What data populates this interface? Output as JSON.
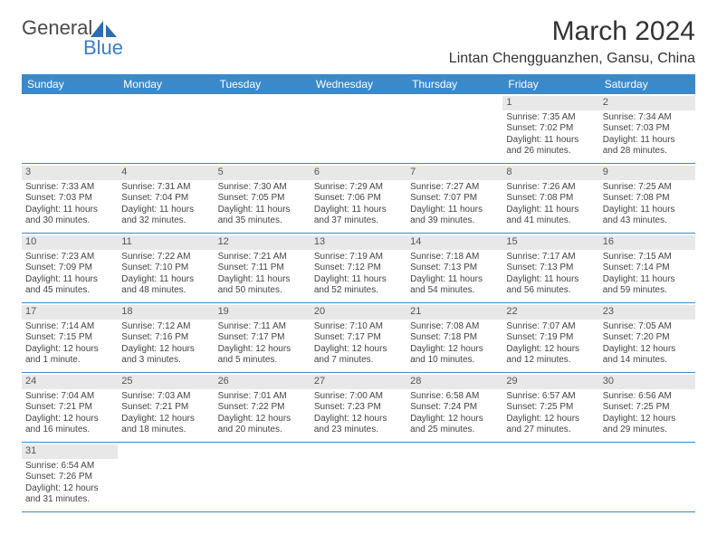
{
  "header": {
    "logo_text1": "General",
    "logo_text2": "Blue",
    "month_title": "March 2024",
    "location": "Lintan Chengguanzhen, Gansu, China"
  },
  "day_names": [
    "Sunday",
    "Monday",
    "Tuesday",
    "Wednesday",
    "Thursday",
    "Friday",
    "Saturday"
  ],
  "colors": {
    "header_bg": "#3b89c9",
    "header_fg": "#ffffff",
    "daynum_bg": "#e8e8e8",
    "accent": "#3b7fc4"
  },
  "weeks": [
    [
      null,
      null,
      null,
      null,
      null,
      {
        "n": "1",
        "sr": "Sunrise: 7:35 AM",
        "ss": "Sunset: 7:02 PM",
        "d1": "Daylight: 11 hours",
        "d2": "and 26 minutes."
      },
      {
        "n": "2",
        "sr": "Sunrise: 7:34 AM",
        "ss": "Sunset: 7:03 PM",
        "d1": "Daylight: 11 hours",
        "d2": "and 28 minutes."
      }
    ],
    [
      {
        "n": "3",
        "sr": "Sunrise: 7:33 AM",
        "ss": "Sunset: 7:03 PM",
        "d1": "Daylight: 11 hours",
        "d2": "and 30 minutes."
      },
      {
        "n": "4",
        "sr": "Sunrise: 7:31 AM",
        "ss": "Sunset: 7:04 PM",
        "d1": "Daylight: 11 hours",
        "d2": "and 32 minutes."
      },
      {
        "n": "5",
        "sr": "Sunrise: 7:30 AM",
        "ss": "Sunset: 7:05 PM",
        "d1": "Daylight: 11 hours",
        "d2": "and 35 minutes."
      },
      {
        "n": "6",
        "sr": "Sunrise: 7:29 AM",
        "ss": "Sunset: 7:06 PM",
        "d1": "Daylight: 11 hours",
        "d2": "and 37 minutes."
      },
      {
        "n": "7",
        "sr": "Sunrise: 7:27 AM",
        "ss": "Sunset: 7:07 PM",
        "d1": "Daylight: 11 hours",
        "d2": "and 39 minutes."
      },
      {
        "n": "8",
        "sr": "Sunrise: 7:26 AM",
        "ss": "Sunset: 7:08 PM",
        "d1": "Daylight: 11 hours",
        "d2": "and 41 minutes."
      },
      {
        "n": "9",
        "sr": "Sunrise: 7:25 AM",
        "ss": "Sunset: 7:08 PM",
        "d1": "Daylight: 11 hours",
        "d2": "and 43 minutes."
      }
    ],
    [
      {
        "n": "10",
        "sr": "Sunrise: 7:23 AM",
        "ss": "Sunset: 7:09 PM",
        "d1": "Daylight: 11 hours",
        "d2": "and 45 minutes."
      },
      {
        "n": "11",
        "sr": "Sunrise: 7:22 AM",
        "ss": "Sunset: 7:10 PM",
        "d1": "Daylight: 11 hours",
        "d2": "and 48 minutes."
      },
      {
        "n": "12",
        "sr": "Sunrise: 7:21 AM",
        "ss": "Sunset: 7:11 PM",
        "d1": "Daylight: 11 hours",
        "d2": "and 50 minutes."
      },
      {
        "n": "13",
        "sr": "Sunrise: 7:19 AM",
        "ss": "Sunset: 7:12 PM",
        "d1": "Daylight: 11 hours",
        "d2": "and 52 minutes."
      },
      {
        "n": "14",
        "sr": "Sunrise: 7:18 AM",
        "ss": "Sunset: 7:13 PM",
        "d1": "Daylight: 11 hours",
        "d2": "and 54 minutes."
      },
      {
        "n": "15",
        "sr": "Sunrise: 7:17 AM",
        "ss": "Sunset: 7:13 PM",
        "d1": "Daylight: 11 hours",
        "d2": "and 56 minutes."
      },
      {
        "n": "16",
        "sr": "Sunrise: 7:15 AM",
        "ss": "Sunset: 7:14 PM",
        "d1": "Daylight: 11 hours",
        "d2": "and 59 minutes."
      }
    ],
    [
      {
        "n": "17",
        "sr": "Sunrise: 7:14 AM",
        "ss": "Sunset: 7:15 PM",
        "d1": "Daylight: 12 hours",
        "d2": "and 1 minute."
      },
      {
        "n": "18",
        "sr": "Sunrise: 7:12 AM",
        "ss": "Sunset: 7:16 PM",
        "d1": "Daylight: 12 hours",
        "d2": "and 3 minutes."
      },
      {
        "n": "19",
        "sr": "Sunrise: 7:11 AM",
        "ss": "Sunset: 7:17 PM",
        "d1": "Daylight: 12 hours",
        "d2": "and 5 minutes."
      },
      {
        "n": "20",
        "sr": "Sunrise: 7:10 AM",
        "ss": "Sunset: 7:17 PM",
        "d1": "Daylight: 12 hours",
        "d2": "and 7 minutes."
      },
      {
        "n": "21",
        "sr": "Sunrise: 7:08 AM",
        "ss": "Sunset: 7:18 PM",
        "d1": "Daylight: 12 hours",
        "d2": "and 10 minutes."
      },
      {
        "n": "22",
        "sr": "Sunrise: 7:07 AM",
        "ss": "Sunset: 7:19 PM",
        "d1": "Daylight: 12 hours",
        "d2": "and 12 minutes."
      },
      {
        "n": "23",
        "sr": "Sunrise: 7:05 AM",
        "ss": "Sunset: 7:20 PM",
        "d1": "Daylight: 12 hours",
        "d2": "and 14 minutes."
      }
    ],
    [
      {
        "n": "24",
        "sr": "Sunrise: 7:04 AM",
        "ss": "Sunset: 7:21 PM",
        "d1": "Daylight: 12 hours",
        "d2": "and 16 minutes."
      },
      {
        "n": "25",
        "sr": "Sunrise: 7:03 AM",
        "ss": "Sunset: 7:21 PM",
        "d1": "Daylight: 12 hours",
        "d2": "and 18 minutes."
      },
      {
        "n": "26",
        "sr": "Sunrise: 7:01 AM",
        "ss": "Sunset: 7:22 PM",
        "d1": "Daylight: 12 hours",
        "d2": "and 20 minutes."
      },
      {
        "n": "27",
        "sr": "Sunrise: 7:00 AM",
        "ss": "Sunset: 7:23 PM",
        "d1": "Daylight: 12 hours",
        "d2": "and 23 minutes."
      },
      {
        "n": "28",
        "sr": "Sunrise: 6:58 AM",
        "ss": "Sunset: 7:24 PM",
        "d1": "Daylight: 12 hours",
        "d2": "and 25 minutes."
      },
      {
        "n": "29",
        "sr": "Sunrise: 6:57 AM",
        "ss": "Sunset: 7:25 PM",
        "d1": "Daylight: 12 hours",
        "d2": "and 27 minutes."
      },
      {
        "n": "30",
        "sr": "Sunrise: 6:56 AM",
        "ss": "Sunset: 7:25 PM",
        "d1": "Daylight: 12 hours",
        "d2": "and 29 minutes."
      }
    ],
    [
      {
        "n": "31",
        "sr": "Sunrise: 6:54 AM",
        "ss": "Sunset: 7:26 PM",
        "d1": "Daylight: 12 hours",
        "d2": "and 31 minutes."
      },
      null,
      null,
      null,
      null,
      null,
      null
    ]
  ]
}
